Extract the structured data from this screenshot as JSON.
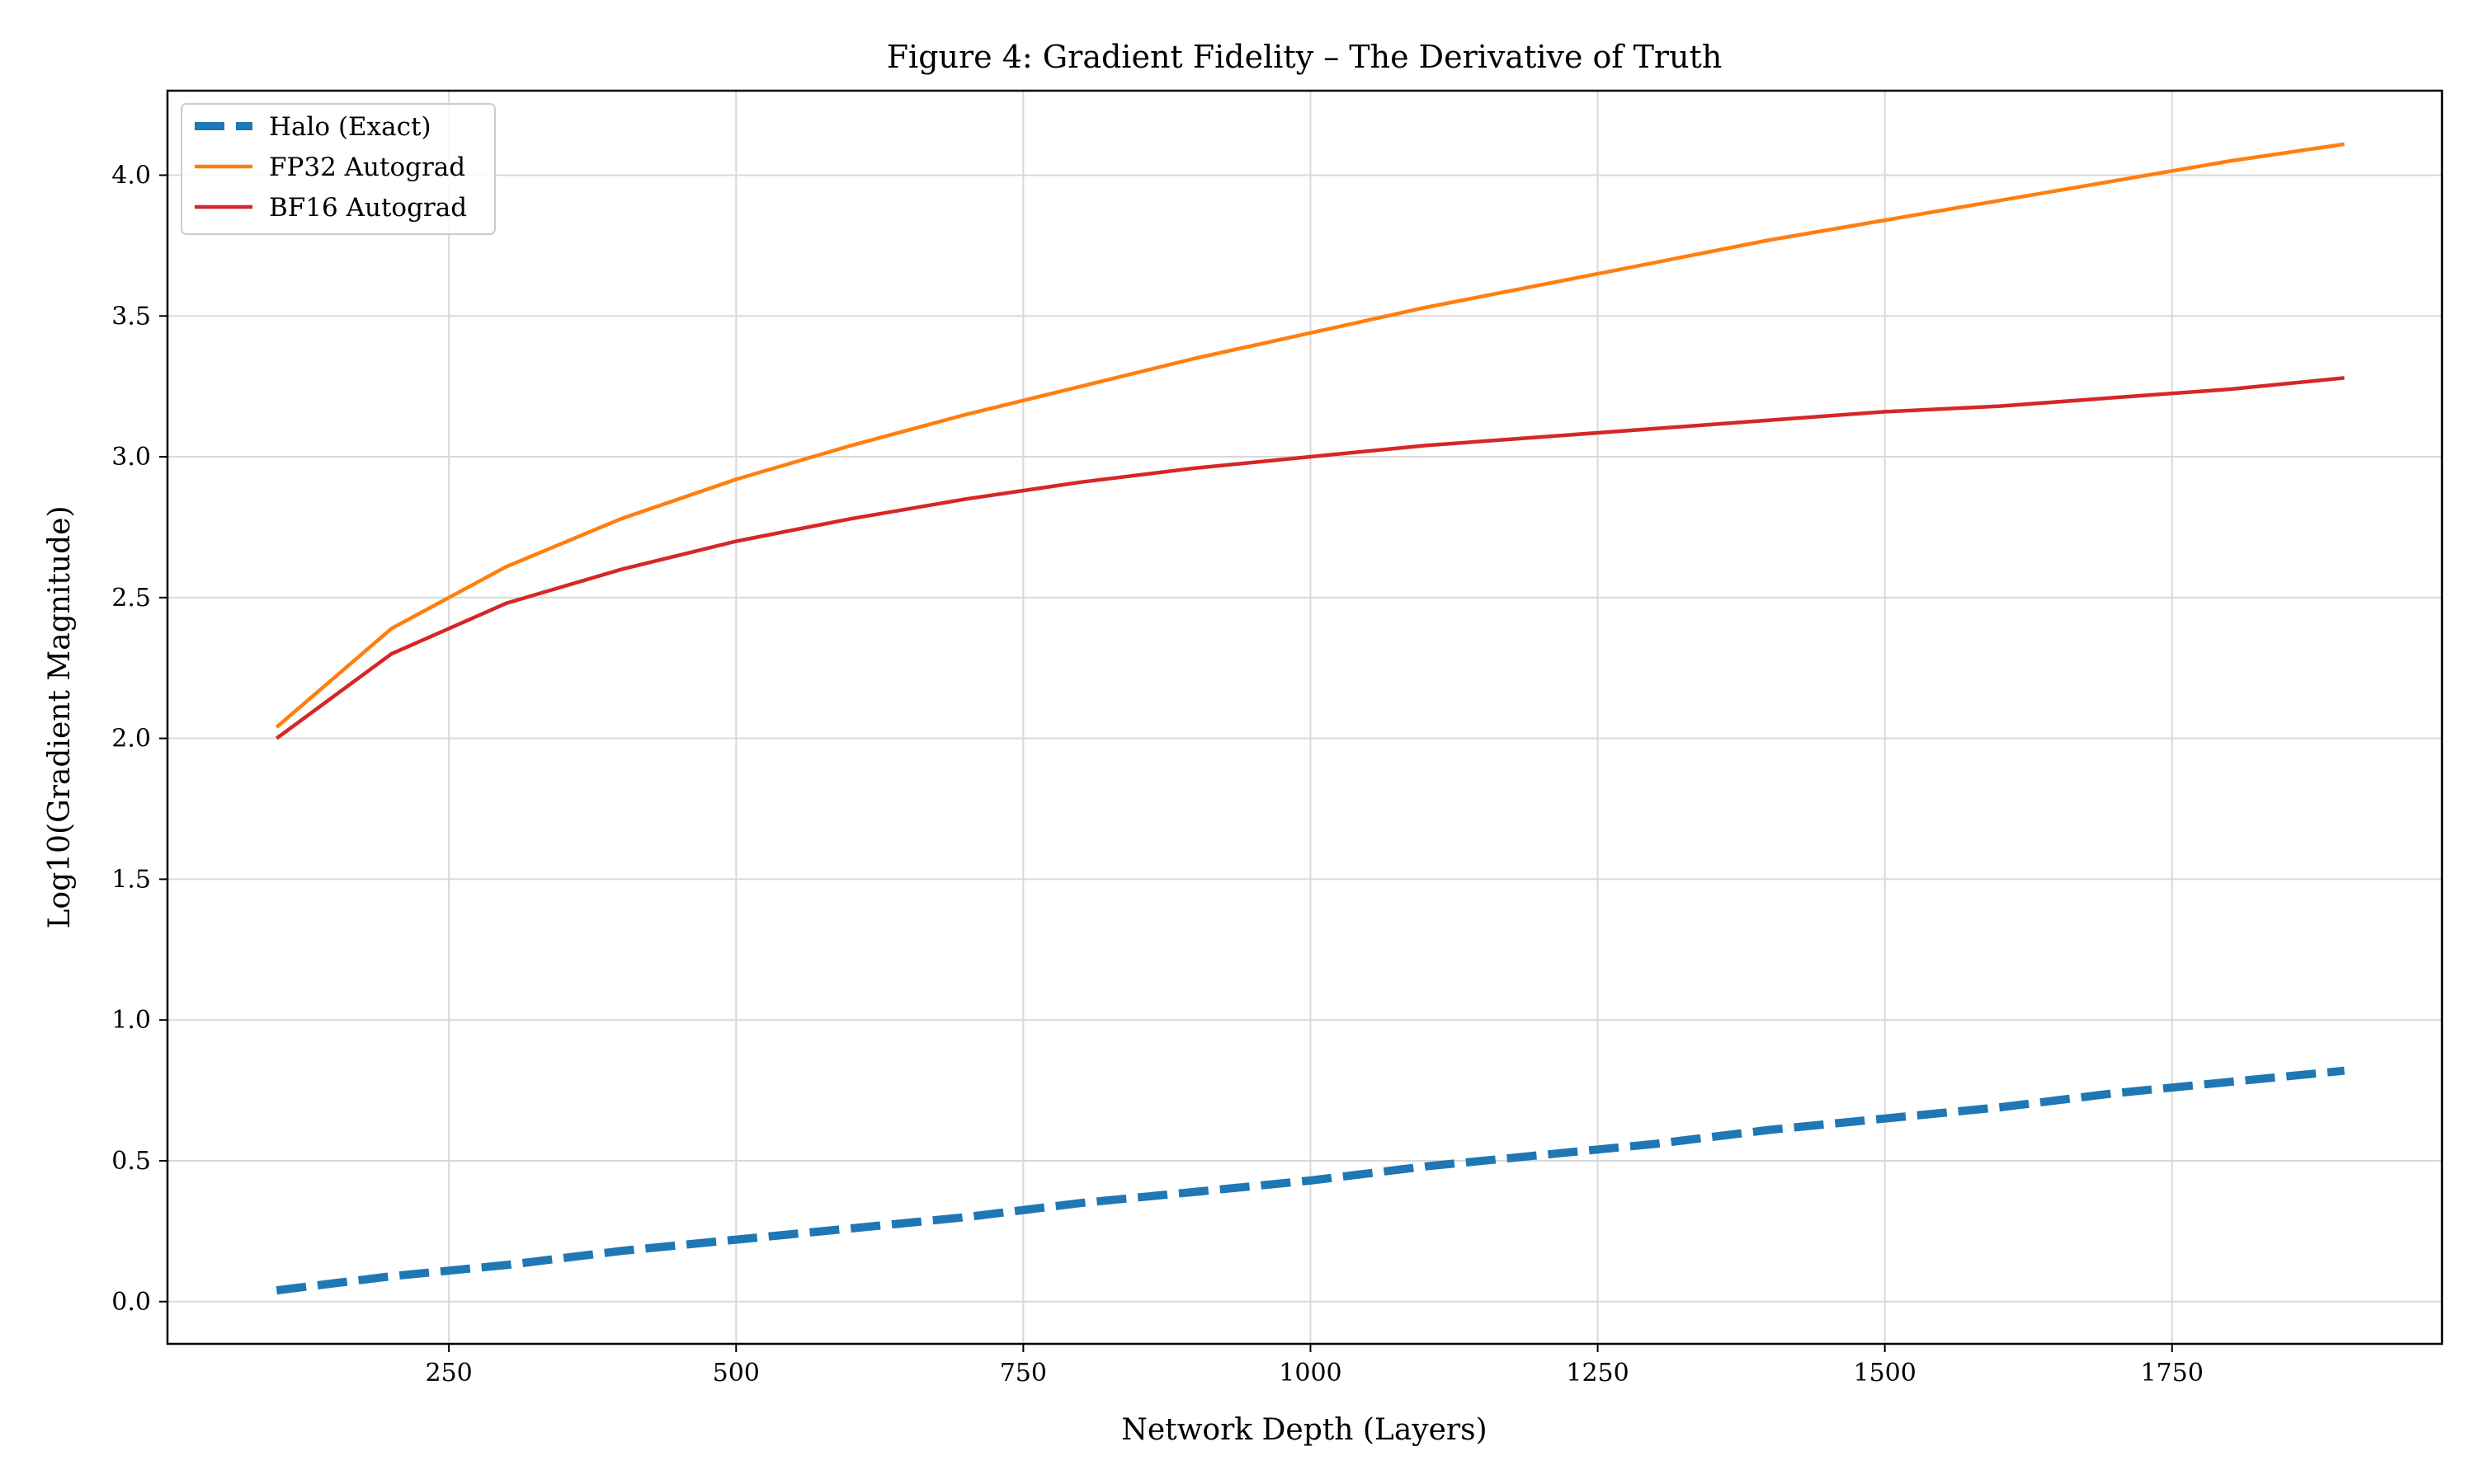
{
  "chart_data": {
    "type": "line",
    "title": "Figure 4: Gradient Fidelity – The Derivative of Truth",
    "xlabel": "Network Depth (Layers)",
    "ylabel": "Log10(Gradient Magnitude)",
    "xlim": [
      5,
      1985
    ],
    "ylim": [
      -0.15,
      4.3
    ],
    "xticks": [
      250,
      500,
      750,
      1000,
      1250,
      1500,
      1750
    ],
    "yticks": [
      0.0,
      0.5,
      1.0,
      1.5,
      2.0,
      2.5,
      3.0,
      3.5,
      4.0
    ],
    "xtick_labels": [
      "250",
      "500",
      "750",
      "1000",
      "1250",
      "1500",
      "1750"
    ],
    "ytick_labels": [
      "0.0",
      "0.5",
      "1.0",
      "1.5",
      "2.0",
      "2.5",
      "3.0",
      "3.5",
      "4.0"
    ],
    "grid": true,
    "legend_position": "top-left",
    "x": [
      100,
      200,
      300,
      400,
      500,
      600,
      700,
      800,
      900,
      1000,
      1100,
      1200,
      1300,
      1400,
      1500,
      1600,
      1700,
      1800,
      1900
    ],
    "series": [
      {
        "name": "Halo (Exact)",
        "color": "#1f77b4",
        "style": "dashed",
        "values": [
          0.04,
          0.09,
          0.13,
          0.18,
          0.22,
          0.26,
          0.3,
          0.35,
          0.39,
          0.43,
          0.48,
          0.52,
          0.56,
          0.61,
          0.65,
          0.69,
          0.74,
          0.78,
          0.82
        ]
      },
      {
        "name": "FP32 Autograd",
        "color": "#ff7f0e",
        "style": "solid",
        "values": [
          2.04,
          2.39,
          2.61,
          2.78,
          2.92,
          3.04,
          3.15,
          3.25,
          3.35,
          3.44,
          3.53,
          3.61,
          3.69,
          3.77,
          3.84,
          3.91,
          3.98,
          4.05,
          4.11
        ]
      },
      {
        "name": "BF16 Autograd",
        "color": "#d62728",
        "style": "solid",
        "values": [
          2.0,
          2.3,
          2.48,
          2.6,
          2.7,
          2.78,
          2.85,
          2.91,
          2.96,
          3.0,
          3.04,
          3.07,
          3.1,
          3.13,
          3.16,
          3.18,
          3.21,
          3.24,
          3.28
        ]
      }
    ]
  }
}
